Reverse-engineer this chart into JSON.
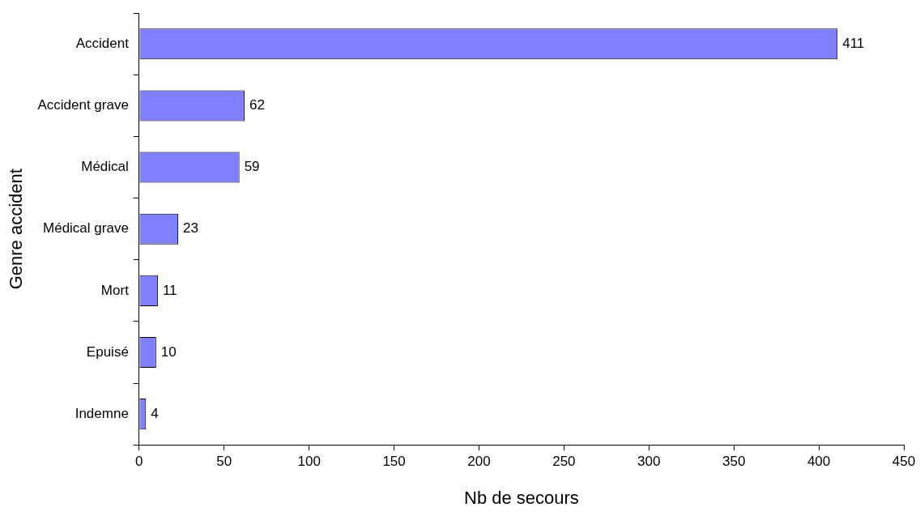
{
  "chart_data": {
    "type": "bar",
    "orientation": "horizontal",
    "xlabel": "Nb de secours",
    "ylabel": "Genre accident",
    "categories": [
      "Accident",
      "Accident grave",
      "Médical",
      "Médical grave",
      "Mort",
      "Epuisé",
      "Indemne"
    ],
    "values": [
      411,
      62,
      59,
      23,
      11,
      10,
      4
    ],
    "color": "#8080ff",
    "xlim": [
      0,
      450
    ],
    "xticks": [
      0,
      50,
      100,
      150,
      200,
      250,
      300,
      350,
      400,
      450
    ],
    "grid": false,
    "legend": false,
    "data_labels": true
  }
}
